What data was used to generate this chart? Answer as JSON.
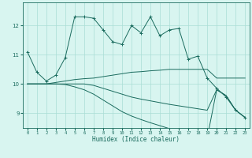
{
  "xlabel": "Humidex (Indice chaleur)",
  "x_values": [
    0,
    1,
    2,
    3,
    4,
    5,
    6,
    7,
    8,
    9,
    10,
    11,
    12,
    13,
    14,
    15,
    16,
    17,
    18,
    19,
    20,
    21,
    22,
    23
  ],
  "line1": [
    11.1,
    10.4,
    10.1,
    10.3,
    10.9,
    12.3,
    12.3,
    12.25,
    11.85,
    11.45,
    11.35,
    12.0,
    11.75,
    12.3,
    11.65,
    11.85,
    11.9,
    10.85,
    10.95,
    10.2,
    9.85,
    9.55,
    9.1,
    8.85
  ],
  "line2": [
    10.0,
    10.0,
    10.0,
    10.05,
    10.1,
    10.15,
    10.18,
    10.2,
    10.25,
    10.3,
    10.35,
    10.4,
    10.42,
    10.45,
    10.47,
    10.5,
    10.5,
    10.5,
    10.5,
    10.5,
    10.2,
    10.2,
    10.2,
    10.2
  ],
  "line3": [
    10.0,
    10.0,
    10.0,
    10.0,
    10.0,
    10.0,
    10.0,
    9.95,
    9.85,
    9.75,
    9.65,
    9.55,
    9.48,
    9.42,
    9.36,
    9.3,
    9.25,
    9.2,
    9.15,
    9.1,
    9.8,
    9.6,
    9.1,
    8.85
  ],
  "line4": [
    10.0,
    10.0,
    10.0,
    10.0,
    9.98,
    9.9,
    9.8,
    9.65,
    9.45,
    9.25,
    9.05,
    8.9,
    8.78,
    8.67,
    8.57,
    8.47,
    8.38,
    8.3,
    8.22,
    8.15,
    9.8,
    9.6,
    9.1,
    8.85
  ],
  "line_color": "#1a6b5e",
  "bg_color": "#d8f5f0",
  "grid_color": "#aaddd5",
  "ylim": [
    8.5,
    12.8
  ],
  "yticks": [
    9,
    10,
    11,
    12
  ],
  "xlim": [
    -0.5,
    23.5
  ]
}
